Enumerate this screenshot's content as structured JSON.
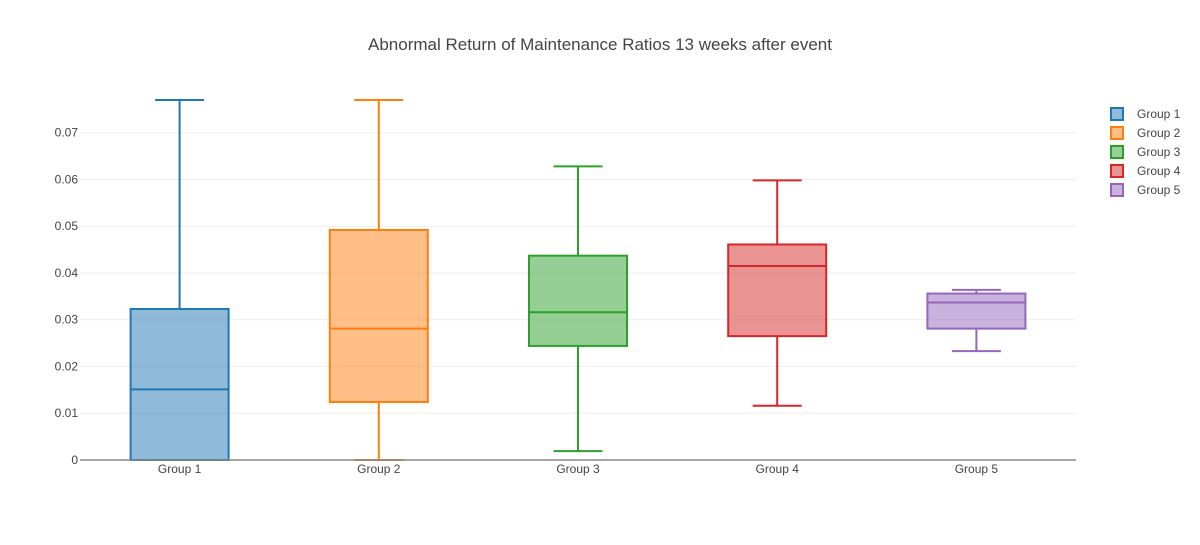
{
  "chart_data": {
    "type": "box",
    "title": "Abnormal Return of Maintenance Ratios 13 weeks after event",
    "xlabel": "",
    "ylabel": "",
    "ylim": [
      0,
      0.077
    ],
    "yticks": [
      0,
      0.01,
      0.02,
      0.03,
      0.04,
      0.05,
      0.06,
      0.07
    ],
    "ytick_labels": [
      "0",
      "0.01",
      "0.02",
      "0.03",
      "0.04",
      "0.05",
      "0.06",
      "0.07"
    ],
    "categories": [
      "Group 1",
      "Group 2",
      "Group 3",
      "Group 4",
      "Group 5"
    ],
    "grid": true,
    "legend_position": "top-right",
    "series": [
      {
        "name": "Group 1",
        "color": "#1f77b4",
        "fill": "rgba(31,119,180,0.5)",
        "whisker_low": 0,
        "q1": 0,
        "median": 0.0151,
        "q3": 0.0323,
        "whisker_high": 0.077
      },
      {
        "name": "Group 2",
        "color": "#ff7f0e",
        "fill": "rgba(255,127,14,0.5)",
        "whisker_low": 0,
        "q1": 0.0124,
        "median": 0.0281,
        "q3": 0.0492,
        "whisker_high": 0.077
      },
      {
        "name": "Group 3",
        "color": "#2ca02c",
        "fill": "rgba(44,160,44,0.5)",
        "whisker_low": 0.0019,
        "q1": 0.0244,
        "median": 0.0316,
        "q3": 0.0437,
        "whisker_high": 0.0628
      },
      {
        "name": "Group 4",
        "color": "#d62728",
        "fill": "rgba(214,39,40,0.5)",
        "whisker_low": 0.0116,
        "q1": 0.0265,
        "median": 0.0415,
        "q3": 0.0461,
        "whisker_high": 0.0598
      },
      {
        "name": "Group 5",
        "color": "#9467bd",
        "fill": "rgba(148,103,189,0.5)",
        "whisker_low": 0.0233,
        "q1": 0.0281,
        "median": 0.0337,
        "q3": 0.0356,
        "whisker_high": 0.0364
      }
    ]
  }
}
